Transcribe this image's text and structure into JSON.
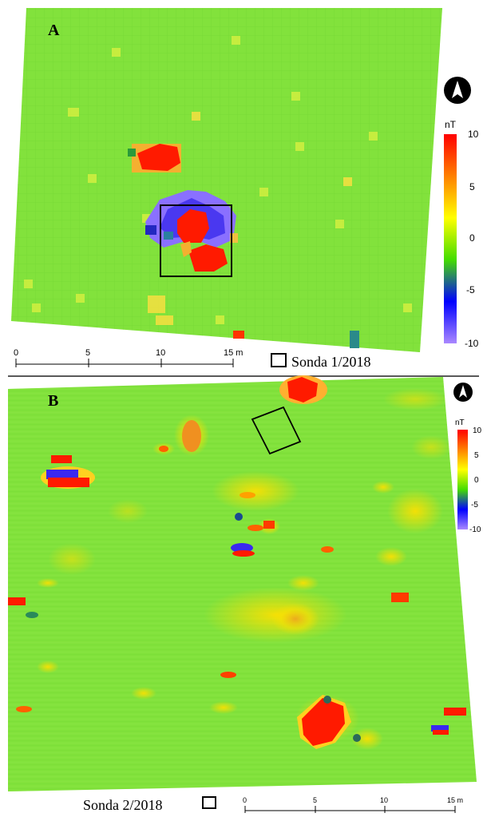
{
  "panels": [
    {
      "label": "A",
      "colorbar": {
        "unit": "nT",
        "ticks": [
          "10",
          "5",
          "0",
          "-5",
          "-10"
        ],
        "stops": [
          "#ff0000",
          "#ff8000",
          "#ffff00",
          "#44dd00",
          "#0000ff",
          "#aa88ff"
        ]
      },
      "scale": {
        "ticks": [
          "0",
          "5",
          "10",
          "15 m"
        ]
      },
      "legend_label": "Sonda 1/2018"
    },
    {
      "label": "B",
      "colorbar": {
        "unit": "nT",
        "ticks": [
          "10",
          "5",
          "0",
          "-5",
          "-10"
        ],
        "stops": [
          "#ff0000",
          "#ff8000",
          "#ffff00",
          "#44dd00",
          "#0000ff",
          "#aa88ff"
        ]
      },
      "scale": {
        "ticks": [
          "0",
          "5",
          "10",
          "15 m"
        ]
      },
      "legend_label": "Sonda 2/2018"
    }
  ],
  "map_colors": {
    "background": "#7fe03a",
    "positive": "#ff1a00",
    "moderate": "#ffd400",
    "negative": "#3a28f0",
    "weak_negative": "#8a70ff"
  },
  "icons": [
    "north-arrow-icon",
    "north-arrow-icon"
  ]
}
